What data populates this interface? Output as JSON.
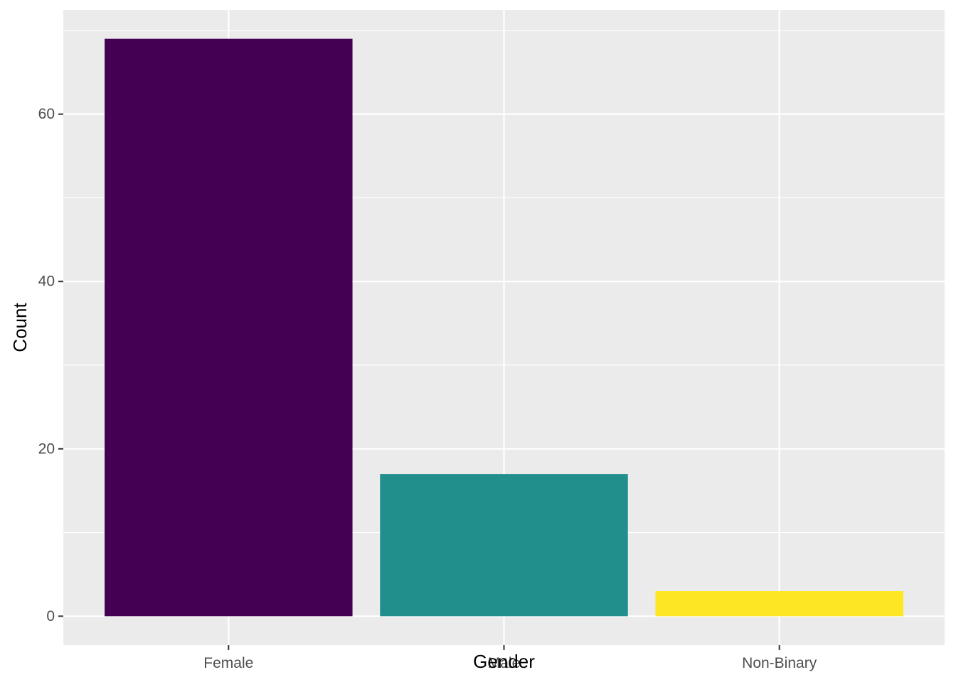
{
  "chart_data": {
    "type": "bar",
    "categories": [
      "Female",
      "Male",
      "Non-Binary"
    ],
    "values": [
      69,
      17,
      3
    ],
    "colors": [
      "#440154",
      "#21908C",
      "#FDE725"
    ],
    "xlabel": "Gender",
    "ylabel": "Count",
    "ylim": [
      0,
      69
    ],
    "yticks": [
      0,
      20,
      40,
      60
    ],
    "ytick_labels": [
      "0",
      "20",
      "40",
      "60"
    ],
    "grid": true,
    "legend": "none",
    "panel_background": "#EBEBEB",
    "grid_color": "#FFFFFF"
  }
}
